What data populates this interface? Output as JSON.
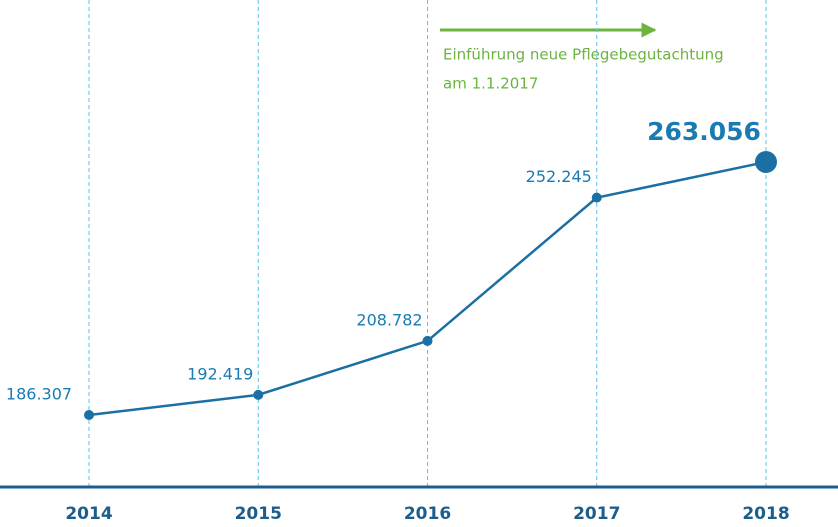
{
  "chart_data": {
    "type": "line",
    "categories": [
      "2014",
      "2015",
      "2016",
      "2017",
      "2018"
    ],
    "values": [
      186307,
      192419,
      208782,
      252245,
      263056
    ],
    "value_labels": [
      "186.307",
      "192.419",
      "208.782",
      "252.245",
      "263.056"
    ],
    "color": "#1b6fa3",
    "ylim": [
      164470,
      312190
    ],
    "annotation": [
      "Einführung neue Pflegebegutachtung",
      "am 1.1.2017"
    ],
    "annotation_color": "#6cb33f",
    "grid": true
  }
}
